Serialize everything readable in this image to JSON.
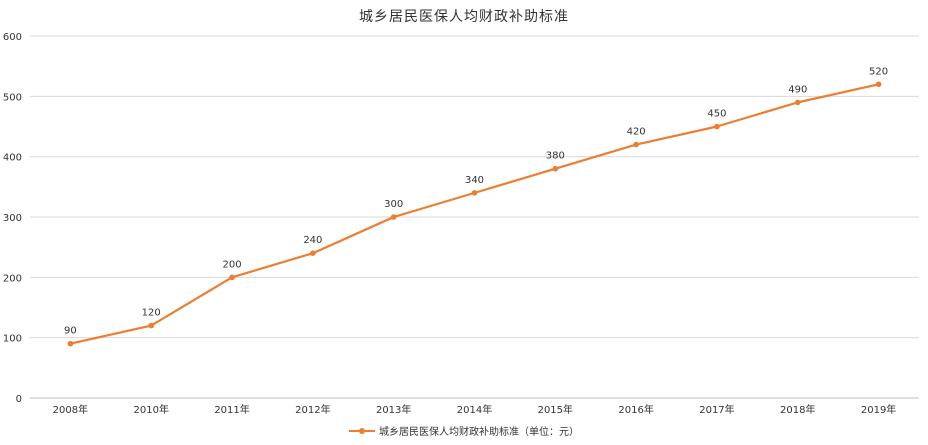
{
  "chart_data": {
    "type": "line",
    "title": "城乡居民医保人均财政补助标准",
    "categories": [
      "2008年",
      "2010年",
      "2011年",
      "2012年",
      "2013年",
      "2014年",
      "2015年",
      "2016年",
      "2017年",
      "2018年",
      "2019年"
    ],
    "series": [
      {
        "name": "城乡居民医保人均财政补助标准（单位：元）",
        "values": [
          90,
          120,
          200,
          240,
          300,
          340,
          380,
          420,
          450,
          490,
          520
        ]
      }
    ],
    "ylim": [
      0,
      600
    ],
    "yticks": [
      0,
      100,
      200,
      300,
      400,
      500,
      600
    ],
    "grid": true,
    "legend": "bottom",
    "data_labels": true,
    "colors": {
      "line": "#ED7D31",
      "grid": "#D9D9D9",
      "text": "#333333"
    }
  }
}
